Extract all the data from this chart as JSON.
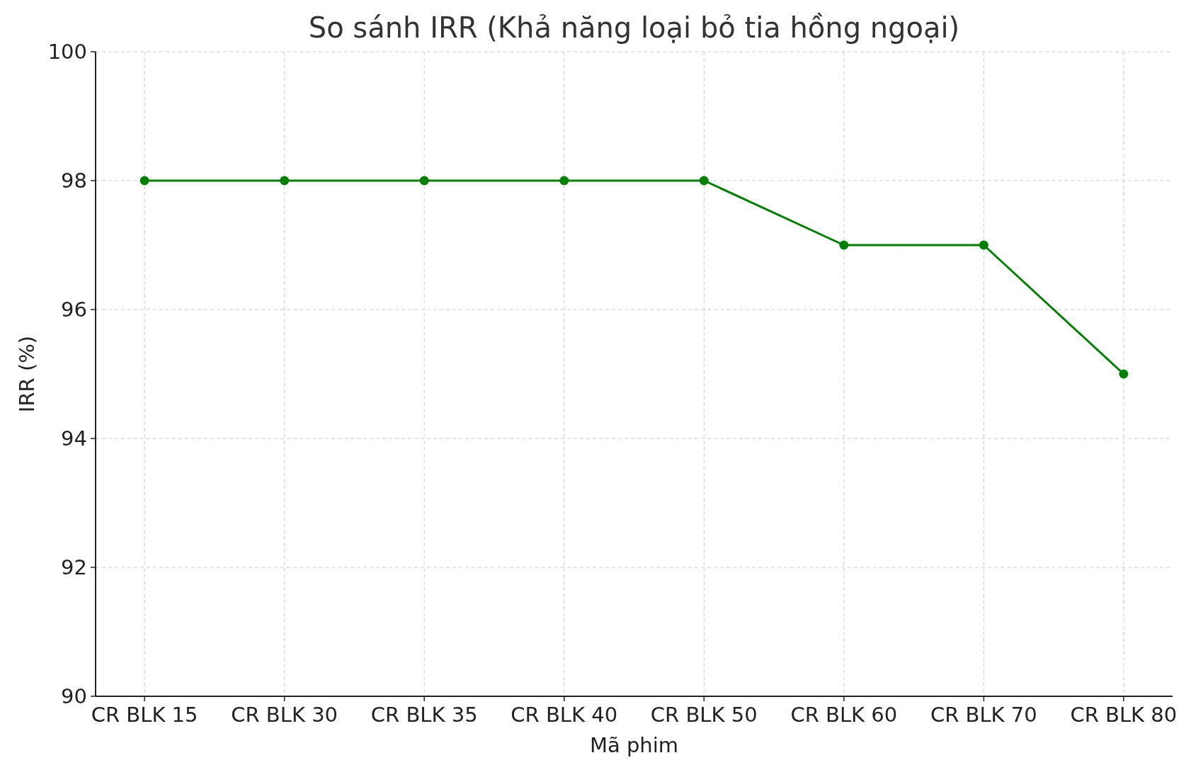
{
  "chart_data": {
    "type": "line",
    "title": "So sánh IRR (Khả năng loại bỏ tia hồng ngoại)",
    "xlabel": "Mã phim",
    "ylabel": "IRR (%)",
    "categories": [
      "CR BLK 15",
      "CR BLK 30",
      "CR BLK 35",
      "CR BLK 40",
      "CR BLK 50",
      "CR BLK 60",
      "CR BLK 70",
      "CR BLK 80"
    ],
    "series": [
      {
        "color": "#008000",
        "values": [
          98,
          98,
          98,
          98,
          98,
          97,
          97,
          95
        ]
      }
    ],
    "ylim": [
      90,
      100
    ],
    "yticks": [
      90,
      92,
      94,
      96,
      98,
      100
    ],
    "grid": true,
    "marker": "circle",
    "line_style": "solid"
  }
}
